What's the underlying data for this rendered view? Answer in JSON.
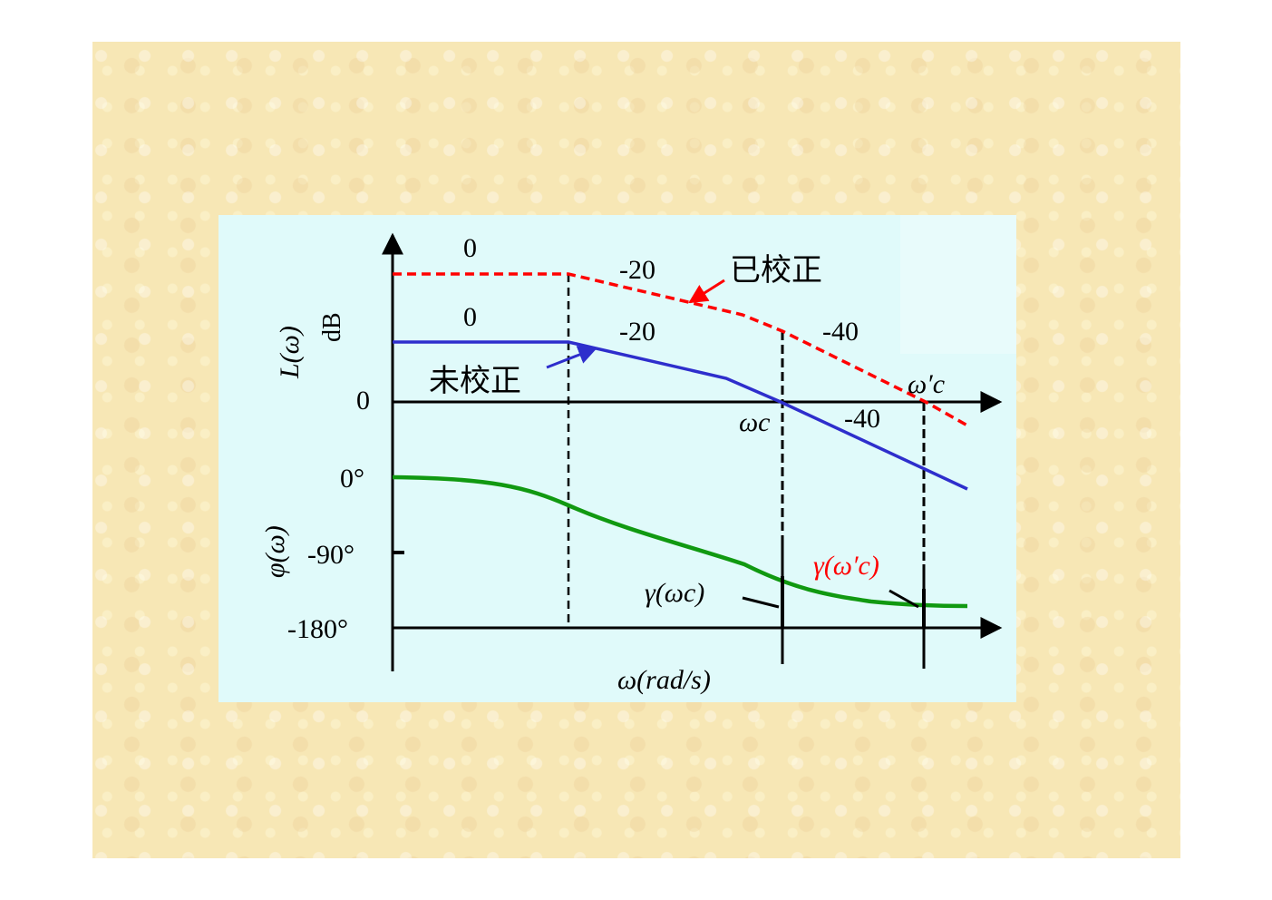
{
  "magnitude_axis": {
    "label": "L(ω)",
    "unit": "dB",
    "zero_label": "0"
  },
  "phase_axis": {
    "label": "φ(ω)",
    "ticks": [
      "0°",
      "-90°",
      "-180°"
    ]
  },
  "x_axis": {
    "label": "ω(rad/s)"
  },
  "curves": {
    "corrected": {
      "name": "已校正",
      "color": "#ff0000",
      "slopes": [
        "0",
        "-20",
        "-40"
      ]
    },
    "uncorrected": {
      "name": "未校正",
      "color": "#2e2ecc",
      "slopes": [
        "0",
        "-20",
        "-40"
      ]
    },
    "phase": {
      "color": "#119911"
    }
  },
  "frequencies": {
    "wc": "ωc",
    "wc_prime": "ω′c"
  },
  "margins": {
    "uncorrected": "γ(ωc)",
    "corrected": "γ(ω′c)",
    "corrected_color": "#ff0000"
  },
  "background": {
    "slide": "#f7e7b5",
    "figure": "#e0fafa"
  }
}
